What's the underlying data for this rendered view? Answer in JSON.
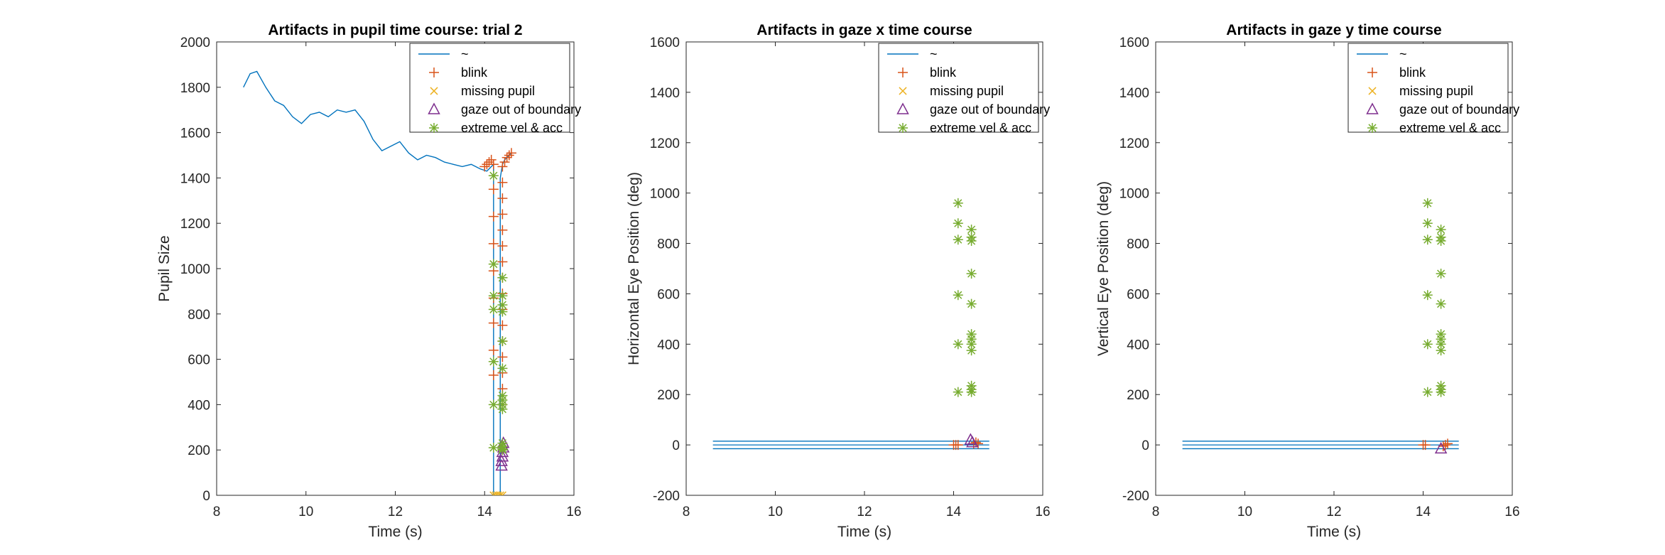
{
  "colors": {
    "line": "#0072BD",
    "blink": "#D95319",
    "missing_pupil": "#EDB120",
    "gaze_out": "#7E2F8E",
    "extreme_vel": "#77AC30"
  },
  "chart_data": [
    {
      "type": "scatter",
      "title": "Artifacts in pupil time course: trial 2",
      "xlabel": "Time (s)",
      "ylabel": "Pupil Size",
      "xlim": [
        8,
        16
      ],
      "ylim": [
        0,
        2000
      ],
      "xticks": [
        "8",
        "10",
        "12",
        "14",
        "16"
      ],
      "yticks": [
        "0",
        "200",
        "400",
        "600",
        "800",
        "1000",
        "1200",
        "1400",
        "1600",
        "1800",
        "2000"
      ],
      "legend": {
        "position": "top-right",
        "entries": [
          "~",
          "blink",
          "missing pupil",
          "gaze out of boundary",
          "extreme vel & acc"
        ]
      },
      "series": [
        {
          "name": "~",
          "marker": "line",
          "x": [
            8.6,
            8.75,
            8.9,
            9.1,
            9.3,
            9.5,
            9.7,
            9.9,
            10.1,
            10.3,
            10.5,
            10.7,
            10.9,
            11.1,
            11.3,
            11.5,
            11.7,
            11.9,
            12.1,
            12.3,
            12.5,
            12.7,
            12.9,
            13.1,
            13.3,
            13.5,
            13.7,
            13.9,
            14.05,
            14.2,
            14.2,
            14.25,
            14.3,
            14.35,
            14.35,
            14.4,
            14.45,
            14.5,
            14.55,
            14.6
          ],
          "y": [
            1800,
            1860,
            1870,
            1800,
            1740,
            1720,
            1670,
            1640,
            1680,
            1690,
            1670,
            1700,
            1690,
            1700,
            1650,
            1570,
            1520,
            1540,
            1560,
            1510,
            1480,
            1500,
            1490,
            1470,
            1460,
            1450,
            1460,
            1440,
            1430,
            1460,
            0,
            0,
            0,
            0,
            1400,
            1460,
            1480,
            1490,
            1500,
            1510
          ]
        },
        {
          "name": "blink",
          "marker": "plus",
          "x": [
            14.0,
            14.05,
            14.1,
            14.15,
            14.2,
            14.2,
            14.2,
            14.2,
            14.2,
            14.2,
            14.2,
            14.2,
            14.2,
            14.4,
            14.4,
            14.4,
            14.4,
            14.4,
            14.4,
            14.4,
            14.4,
            14.4,
            14.4,
            14.4,
            14.4,
            14.4,
            14.4,
            14.4,
            14.4,
            14.45,
            14.5,
            14.55,
            14.6
          ],
          "y": [
            1450,
            1460,
            1470,
            1480,
            1460,
            1350,
            1230,
            1110,
            990,
            870,
            760,
            640,
            530,
            1450,
            1380,
            1310,
            1240,
            1170,
            1100,
            1030,
            960,
            890,
            820,
            750,
            680,
            610,
            540,
            470,
            400,
            1470,
            1490,
            1500,
            1510
          ]
        },
        {
          "name": "missing pupil",
          "marker": "x",
          "x": [
            14.2,
            14.25,
            14.3,
            14.35,
            14.4
          ],
          "y": [
            0,
            0,
            0,
            0,
            0
          ]
        },
        {
          "name": "gaze out of boundary",
          "marker": "triangle",
          "x": [
            14.38,
            14.38,
            14.4,
            14.4,
            14.42,
            14.42
          ],
          "y": [
            130,
            150,
            170,
            190,
            210,
            230
          ]
        },
        {
          "name": "extreme vel & acc",
          "marker": "star",
          "x": [
            14.2,
            14.2,
            14.2,
            14.2,
            14.2,
            14.2,
            14.2,
            14.4,
            14.4,
            14.4,
            14.4,
            14.4,
            14.4,
            14.4,
            14.4,
            14.4,
            14.4,
            14.4,
            14.4,
            14.4,
            14.4
          ],
          "y": [
            1410,
            1020,
            880,
            820,
            590,
            400,
            210,
            960,
            880,
            840,
            810,
            680,
            560,
            440,
            420,
            400,
            380,
            230,
            215,
            205,
            200
          ]
        }
      ]
    },
    {
      "type": "scatter",
      "title": "Artifacts in gaze x time course",
      "xlabel": "Time (s)",
      "ylabel": "Horizontal Eye Position (deg)",
      "xlim": [
        8,
        16
      ],
      "ylim": [
        -200,
        1600
      ],
      "xticks": [
        "8",
        "10",
        "12",
        "14",
        "16"
      ],
      "yticks": [
        "-200",
        "0",
        "200",
        "400",
        "600",
        "800",
        "1000",
        "1200",
        "1400",
        "1600"
      ],
      "legend": {
        "position": "top-right",
        "entries": [
          "~",
          "blink",
          "missing pupil",
          "gaze out of boundary",
          "extreme vel & acc"
        ]
      },
      "lines": [
        {
          "x": [
            8.6,
            14.8
          ],
          "y": [
            15,
            15
          ]
        },
        {
          "x": [
            8.6,
            14.8
          ],
          "y": [
            0,
            0
          ]
        },
        {
          "x": [
            8.6,
            14.8
          ],
          "y": [
            -15,
            -15
          ]
        }
      ],
      "series": [
        {
          "name": "blink",
          "marker": "plus",
          "x": [
            14.0,
            14.05,
            14.1,
            14.45,
            14.5,
            14.55
          ],
          "y": [
            0,
            0,
            0,
            5,
            10,
            5
          ]
        },
        {
          "name": "gaze out of boundary",
          "marker": "triangle",
          "x": [
            14.38,
            14.42
          ],
          "y": [
            20,
            10
          ]
        },
        {
          "name": "extreme vel & acc",
          "marker": "star",
          "x": [
            14.1,
            14.1,
            14.1,
            14.1,
            14.1,
            14.1,
            14.4,
            14.4,
            14.4,
            14.4,
            14.4,
            14.4,
            14.4,
            14.4,
            14.4,
            14.4,
            14.4,
            14.4
          ],
          "y": [
            960,
            880,
            815,
            595,
            400,
            210,
            855,
            825,
            810,
            680,
            560,
            440,
            420,
            400,
            375,
            235,
            220,
            210
          ]
        }
      ]
    },
    {
      "type": "scatter",
      "title": "Artifacts in gaze y time course",
      "xlabel": "Time (s)",
      "ylabel": "Vertical Eye Position (deg)",
      "xlim": [
        8,
        16
      ],
      "ylim": [
        -200,
        1600
      ],
      "xticks": [
        "8",
        "10",
        "12",
        "14",
        "16"
      ],
      "yticks": [
        "-200",
        "0",
        "200",
        "400",
        "600",
        "800",
        "1000",
        "1200",
        "1400",
        "1600"
      ],
      "legend": {
        "position": "top-right",
        "entries": [
          "~",
          "blink",
          "missing pupil",
          "gaze out of boundary",
          "extreme vel & acc"
        ]
      },
      "lines": [
        {
          "x": [
            8.6,
            14.8
          ],
          "y": [
            15,
            15
          ]
        },
        {
          "x": [
            8.6,
            14.8
          ],
          "y": [
            0,
            0
          ]
        },
        {
          "x": [
            8.6,
            14.8
          ],
          "y": [
            -15,
            -15
          ]
        }
      ],
      "series": [
        {
          "name": "blink",
          "marker": "plus",
          "x": [
            14.0,
            14.05,
            14.45,
            14.5,
            14.55
          ],
          "y": [
            0,
            0,
            -5,
            0,
            5
          ]
        },
        {
          "name": "gaze out of boundary",
          "marker": "triangle",
          "x": [
            14.4
          ],
          "y": [
            -15
          ]
        },
        {
          "name": "extreme vel & acc",
          "marker": "star",
          "x": [
            14.1,
            14.1,
            14.1,
            14.1,
            14.1,
            14.1,
            14.4,
            14.4,
            14.4,
            14.4,
            14.4,
            14.4,
            14.4,
            14.4,
            14.4,
            14.4,
            14.4,
            14.4
          ],
          "y": [
            960,
            880,
            815,
            595,
            400,
            210,
            855,
            825,
            810,
            680,
            560,
            440,
            420,
            400,
            375,
            235,
            220,
            210
          ]
        }
      ]
    }
  ]
}
